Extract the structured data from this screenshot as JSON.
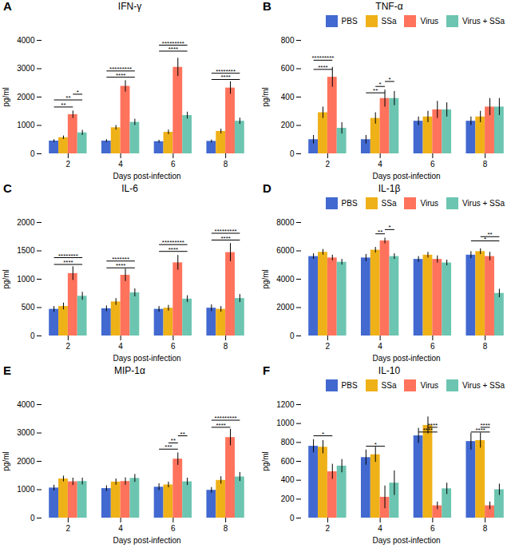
{
  "chart_data": [
    {
      "type": "bar",
      "panel_label": "A",
      "title": "IFN-γ",
      "xlabel": "Days post-infection",
      "ylabel": "pg/ml",
      "categories": [
        "2",
        "4",
        "6",
        "8"
      ],
      "series": [
        {
          "name": "PBS",
          "values": [
            450,
            450,
            430,
            440
          ],
          "errors": [
            50,
            50,
            50,
            50
          ]
        },
        {
          "name": "SSa",
          "values": [
            570,
            920,
            760,
            790
          ],
          "errors": [
            60,
            80,
            80,
            80
          ]
        },
        {
          "name": "Virus",
          "values": [
            1380,
            2380,
            3050,
            2320
          ],
          "errors": [
            130,
            200,
            320,
            220
          ]
        },
        {
          "name": "Virus + SSa",
          "values": [
            740,
            1110,
            1350,
            1150
          ],
          "errors": [
            90,
            110,
            120,
            110
          ]
        }
      ],
      "ylim": [
        0,
        4000
      ],
      "yticks": [
        0,
        1000,
        2000,
        3000,
        4000
      ],
      "grid": false,
      "annotations": [
        {
          "category": "2",
          "from": "PBS",
          "to": "Virus",
          "y": 1650,
          "text": "**"
        },
        {
          "category": "2",
          "from": "PBS",
          "to": "Virus + SSa",
          "y": 1900,
          "text": "**"
        },
        {
          "category": "2",
          "from": "Virus",
          "to": "Virus + SSa",
          "y": 2100,
          "text": "*"
        },
        {
          "category": "4",
          "from": "PBS",
          "to": "Virus + SSa",
          "y": 2700,
          "text": "****"
        },
        {
          "category": "4",
          "from": "PBS",
          "to": "Virus + SSa",
          "y": 2920,
          "text": "*********"
        },
        {
          "category": "6",
          "from": "PBS",
          "to": "Virus + SSa",
          "y": 3620,
          "text": "****"
        },
        {
          "category": "6",
          "from": "PBS",
          "to": "Virus + SSa",
          "y": 3830,
          "text": "*********"
        },
        {
          "category": "8",
          "from": "PBS",
          "to": "Virus + SSa",
          "y": 2620,
          "text": "****"
        },
        {
          "category": "8",
          "from": "PBS",
          "to": "Virus + SSa",
          "y": 2840,
          "text": "********"
        }
      ]
    },
    {
      "type": "bar",
      "panel_label": "B",
      "title": "TNF-α",
      "xlabel": "Days post-infection",
      "ylabel": "pg/ml",
      "categories": [
        "2",
        "4",
        "6",
        "8"
      ],
      "series": [
        {
          "name": "PBS",
          "values": [
            100,
            100,
            230,
            230
          ],
          "errors": [
            30,
            30,
            30,
            30
          ]
        },
        {
          "name": "SSa",
          "values": [
            290,
            250,
            260,
            260
          ],
          "errors": [
            40,
            40,
            40,
            40
          ]
        },
        {
          "name": "Virus",
          "values": [
            540,
            390,
            310,
            330
          ],
          "errors": [
            70,
            60,
            60,
            60
          ]
        },
        {
          "name": "Virus + SSa",
          "values": [
            180,
            390,
            310,
            330
          ],
          "errors": [
            40,
            50,
            50,
            60
          ]
        }
      ],
      "ylim": [
        0,
        800
      ],
      "yticks": [
        0,
        200,
        400,
        600,
        800
      ],
      "grid": false,
      "legend": "upper right",
      "annotations": [
        {
          "category": "2",
          "from": "PBS",
          "to": "Virus",
          "y": 595,
          "text": "****"
        },
        {
          "category": "2",
          "from": "PBS",
          "to": "Virus",
          "y": 660,
          "text": "*********"
        },
        {
          "category": "4",
          "from": "PBS",
          "to": "Virus",
          "y": 430,
          "text": "**"
        },
        {
          "category": "4",
          "from": "SSa",
          "to": "Virus",
          "y": 475,
          "text": "*"
        },
        {
          "category": "4",
          "from": "Virus",
          "to": "Virus + SSa",
          "y": 510,
          "text": "*"
        }
      ]
    },
    {
      "type": "bar",
      "panel_label": "C",
      "title": "IL-6",
      "xlabel": "Days post-infection",
      "ylabel": "pg/ml",
      "categories": [
        "2",
        "4",
        "6",
        "8"
      ],
      "series": [
        {
          "name": "PBS",
          "values": [
            470,
            480,
            470,
            490
          ],
          "errors": [
            50,
            50,
            50,
            60
          ]
        },
        {
          "name": "SSa",
          "values": [
            520,
            600,
            490,
            470
          ],
          "errors": [
            60,
            60,
            50,
            50
          ]
        },
        {
          "name": "Virus",
          "values": [
            1100,
            1070,
            1290,
            1470
          ],
          "errors": [
            120,
            110,
            130,
            160
          ]
        },
        {
          "name": "Virus + SSa",
          "values": [
            700,
            760,
            650,
            660
          ],
          "errors": [
            70,
            70,
            60,
            70
          ]
        }
      ],
      "ylim": [
        0,
        2000
      ],
      "yticks": [
        0,
        500,
        1000,
        1500,
        2000
      ],
      "grid": false,
      "annotations": [
        {
          "category": "2",
          "from": "PBS",
          "to": "Virus + SSa",
          "y": 1260,
          "text": "****"
        },
        {
          "category": "2",
          "from": "PBS",
          "to": "Virus + SSa",
          "y": 1380,
          "text": "********"
        },
        {
          "category": "4",
          "from": "PBS",
          "to": "Virus + SSa",
          "y": 1200,
          "text": "****"
        },
        {
          "category": "4",
          "from": "PBS",
          "to": "Virus + SSa",
          "y": 1320,
          "text": "*******"
        },
        {
          "category": "6",
          "from": "PBS",
          "to": "Virus + SSa",
          "y": 1490,
          "text": "****"
        },
        {
          "category": "6",
          "from": "PBS",
          "to": "Virus + SSa",
          "y": 1610,
          "text": "*********"
        },
        {
          "category": "8",
          "from": "PBS",
          "to": "Virus + SSa",
          "y": 1690,
          "text": "****"
        },
        {
          "category": "8",
          "from": "PBS",
          "to": "Virus + SSa",
          "y": 1810,
          "text": "*********"
        }
      ]
    },
    {
      "type": "bar",
      "panel_label": "D",
      "title": "IL-1β",
      "xlabel": "Days post-infection",
      "ylabel": "pg/ml",
      "categories": [
        "2",
        "4",
        "6",
        "8"
      ],
      "series": [
        {
          "name": "PBS",
          "values": [
            5600,
            5500,
            5400,
            5700
          ],
          "errors": [
            200,
            250,
            200,
            250
          ]
        },
        {
          "name": "SSa",
          "values": [
            5900,
            6050,
            5700,
            5950
          ],
          "errors": [
            200,
            200,
            200,
            200
          ]
        },
        {
          "name": "Virus",
          "values": [
            5500,
            6700,
            5400,
            5600
          ],
          "errors": [
            200,
            200,
            250,
            300
          ]
        },
        {
          "name": "Virus + SSa",
          "values": [
            5200,
            5600,
            5150,
            3000
          ],
          "errors": [
            200,
            200,
            200,
            300
          ]
        }
      ],
      "ylim": [
        0,
        8000
      ],
      "yticks": [
        0,
        2000,
        4000,
        6000,
        8000
      ],
      "grid": false,
      "legend": "upper right",
      "annotations": [
        {
          "category": "4",
          "from": "SSa",
          "to": "Virus",
          "y": 7200,
          "text": "**"
        },
        {
          "category": "4",
          "from": "Virus",
          "to": "Virus + SSa",
          "y": 7500,
          "text": "*"
        },
        {
          "category": "8",
          "from": "PBS",
          "to": "Virus + SSa",
          "y": 6700,
          "text": "*"
        },
        {
          "category": "8",
          "from": "SSa",
          "to": "Virus + SSa",
          "y": 7000,
          "text": "**"
        }
      ]
    },
    {
      "type": "bar",
      "panel_label": "E",
      "title": "MIP-1α",
      "xlabel": "Days post-infection",
      "ylabel": "pg/ml",
      "categories": [
        "2",
        "4",
        "6",
        "8"
      ],
      "series": [
        {
          "name": "PBS",
          "values": [
            1060,
            1040,
            1090,
            980
          ],
          "errors": [
            100,
            100,
            120,
            100
          ]
        },
        {
          "name": "SSa",
          "values": [
            1380,
            1270,
            1170,
            1330
          ],
          "errors": [
            100,
            110,
            100,
            130
          ]
        },
        {
          "name": "Virus",
          "values": [
            1280,
            1290,
            2080,
            2840
          ],
          "errors": [
            130,
            130,
            220,
            290
          ]
        },
        {
          "name": "Virus + SSa",
          "values": [
            1290,
            1400,
            1280,
            1450
          ],
          "errors": [
            120,
            140,
            130,
            160
          ]
        }
      ],
      "ylim": [
        0,
        4000
      ],
      "yticks": [
        0,
        1000,
        2000,
        3000,
        4000
      ],
      "grid": false,
      "annotations": [
        {
          "category": "6",
          "from": "PBS",
          "to": "Virus",
          "y": 2430,
          "text": "***"
        },
        {
          "category": "6",
          "from": "SSa",
          "to": "Virus",
          "y": 2650,
          "text": "**"
        },
        {
          "category": "6",
          "from": "Virus",
          "to": "Virus + SSa",
          "y": 2900,
          "text": "**"
        },
        {
          "category": "8",
          "from": "PBS",
          "to": "Virus",
          "y": 3200,
          "text": "****"
        },
        {
          "category": "8",
          "from": "PBS",
          "to": "Virus + SSa",
          "y": 3450,
          "text": "*********"
        }
      ]
    },
    {
      "type": "bar",
      "panel_label": "F",
      "title": "IL-10",
      "xlabel": "Days post-infection",
      "ylabel": "pg/ml",
      "categories": [
        "2",
        "4",
        "6",
        "8"
      ],
      "series": [
        {
          "name": "PBS",
          "values": [
            760,
            640,
            870,
            810
          ],
          "errors": [
            70,
            80,
            80,
            90
          ]
        },
        {
          "name": "SSa",
          "values": [
            750,
            670,
            980,
            820
          ],
          "errors": [
            70,
            80,
            90,
            80
          ]
        },
        {
          "name": "Virus",
          "values": [
            490,
            220,
            130,
            130
          ],
          "errors": [
            80,
            120,
            40,
            40
          ]
        },
        {
          "name": "Virus + SSa",
          "values": [
            550,
            370,
            310,
            300
          ],
          "errors": [
            70,
            130,
            60,
            60
          ]
        }
      ],
      "ylim": [
        0,
        1200
      ],
      "yticks": [
        0,
        200,
        400,
        600,
        800,
        1000,
        1200
      ],
      "grid": false,
      "legend": "upper right",
      "annotations": [
        {
          "category": "2",
          "from": "PBS",
          "to": "Virus",
          "y": 870,
          "text": "*"
        },
        {
          "category": "4",
          "from": "PBS",
          "to": "Virus",
          "y": 760,
          "text": "*"
        },
        {
          "category": "6",
          "from": "PBS",
          "to": "Virus",
          "y": 910,
          "text": "****"
        },
        {
          "category": "6",
          "from": "SSa",
          "to": "Virus",
          "y": 960,
          "text": "****"
        },
        {
          "category": "8",
          "from": "PBS",
          "to": "Virus",
          "y": 910,
          "text": "****"
        },
        {
          "category": "8",
          "from": "SSa",
          "to": "Virus",
          "y": 960,
          "text": "****"
        }
      ]
    }
  ]
}
